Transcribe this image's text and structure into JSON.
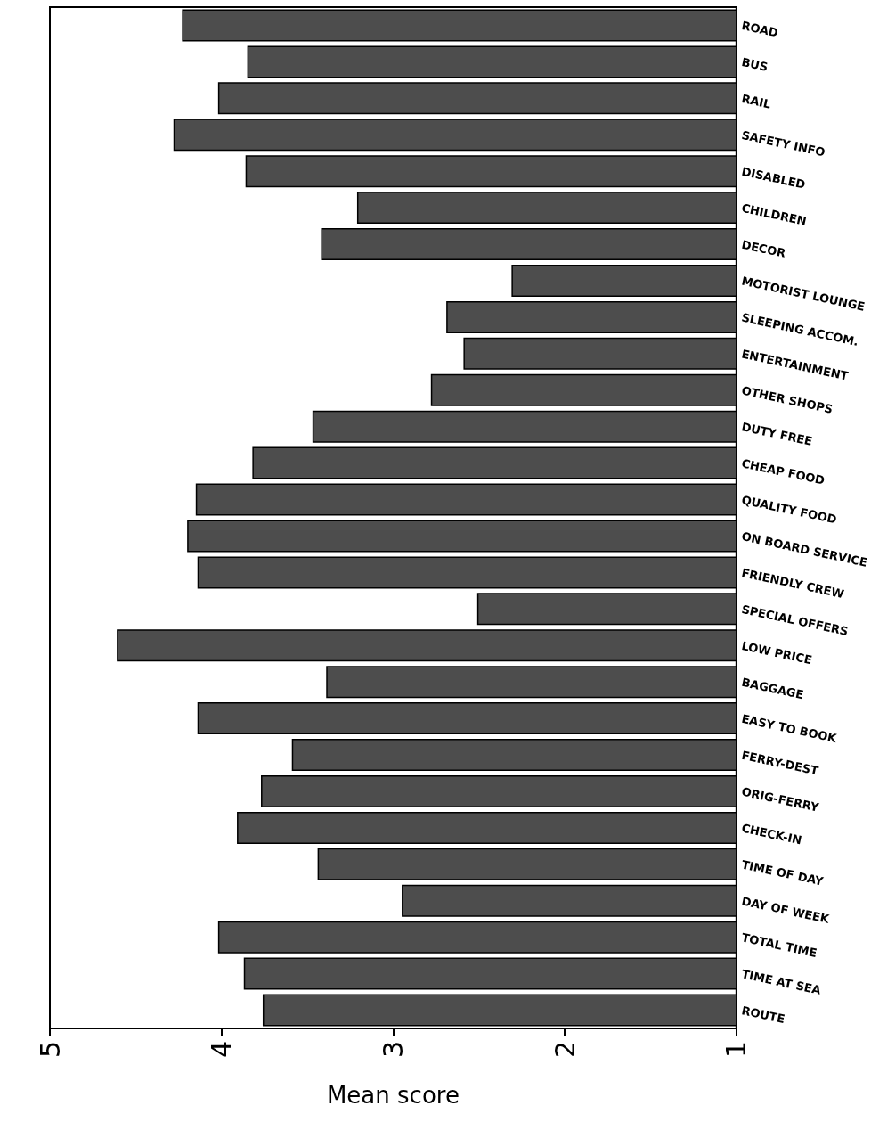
{
  "chart_data": {
    "type": "bar",
    "orientation": "horizontal",
    "xlabel": "Mean score",
    "categories": [
      "ROAD",
      "BUS",
      "RAIL",
      "SAFETY INFO",
      "DISABLED",
      "CHILDREN",
      "DECOR",
      "MOTORIST LOUNGE",
      "SLEEPING ACCOM.",
      "ENTERTAINMENT",
      "OTHER SHOPS",
      "DUTY FREE",
      "CHEAP FOOD",
      "QUALITY FOOD",
      "ON BOARD SERVICE",
      "FRIENDLY CREW",
      "SPECIAL OFFERS",
      "LOW PRICE",
      "BAGGAGE",
      "EASY TO BOOK",
      "FERRY-DEST",
      "ORIG-FERRY",
      "CHECK-IN",
      "TIME OF DAY",
      "DAY OF WEEK",
      "TOTAL TIME",
      "TIME AT SEA",
      "ROUTE"
    ],
    "values": [
      4.23,
      3.85,
      4.02,
      4.28,
      3.86,
      3.21,
      3.42,
      2.31,
      2.69,
      2.59,
      2.78,
      3.47,
      3.82,
      4.15,
      4.2,
      4.14,
      2.51,
      4.61,
      3.39,
      4.14,
      3.59,
      3.77,
      3.91,
      3.44,
      2.95,
      4.02,
      3.87,
      3.76
    ],
    "color": "#4d4d4d",
    "xlim": [
      5,
      1
    ],
    "xticks": [
      5,
      4,
      3,
      2,
      1
    ]
  }
}
